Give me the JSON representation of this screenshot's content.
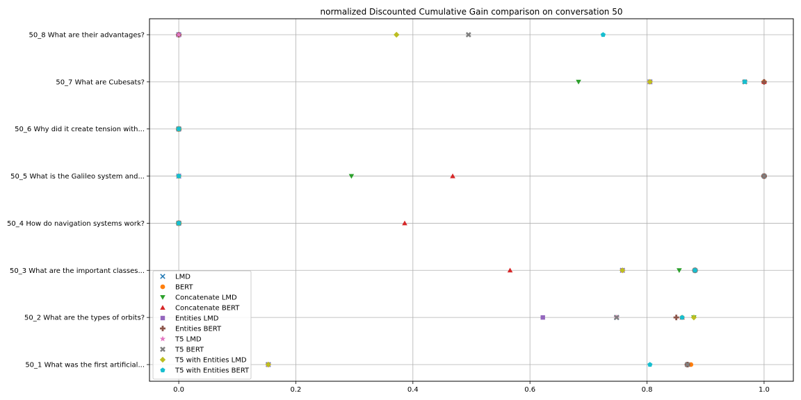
{
  "chart_data": {
    "type": "scatter",
    "title": "normalized Discounted Cumulative Gain comparison on conversation 50",
    "xlabel": "",
    "ylabel": "",
    "xlim": [
      -0.05,
      1.05
    ],
    "xticks": [
      0.0,
      0.2,
      0.4,
      0.6,
      0.8,
      1.0
    ],
    "xtick_labels": [
      "0.0",
      "0.2",
      "0.4",
      "0.6",
      "0.8",
      "1.0"
    ],
    "categories": [
      "50_1 What was the first artificial...",
      "50_2 What are the types of orbits?",
      "50_3 What are the important classes...",
      "50_4 How do navigation systems work?",
      "50_5 What is the Galileo system and...",
      "50_6 Why did it create tension with...",
      "50_7 What are Cubesats?",
      "50_8 What are their advantages?"
    ],
    "grid": true,
    "legend_position": "lower-left",
    "series": [
      {
        "name": "LMD",
        "marker": "x",
        "color": "#1f77b4",
        "values": [
          0.153,
          0.748,
          0.758,
          0.0,
          0.0,
          0.0,
          0.805,
          0.0
        ]
      },
      {
        "name": "BERT",
        "marker": "o",
        "color": "#ff7f0e",
        "values": [
          0.875,
          0.86,
          0.882,
          0.0,
          1.0,
          0.0,
          1.0,
          0.0
        ]
      },
      {
        "name": "Concatenate LMD",
        "marker": "v",
        "color": "#2ca02c",
        "values": [
          0.153,
          0.88,
          0.855,
          0.0,
          0.295,
          0.0,
          0.683,
          0.0
        ]
      },
      {
        "name": "Concatenate BERT",
        "marker": "^",
        "color": "#d62728",
        "values": [
          0.869,
          0.86,
          0.566,
          0.386,
          0.468,
          0.0,
          1.0,
          0.0
        ]
      },
      {
        "name": "Entities LMD",
        "marker": "s",
        "color": "#9467bd",
        "values": [
          0.153,
          0.622,
          0.758,
          0.0,
          0.0,
          0.0,
          0.805,
          0.0
        ]
      },
      {
        "name": "Entities BERT",
        "marker": "P",
        "color": "#8c564b",
        "values": [
          0.869,
          0.85,
          0.882,
          0.0,
          1.0,
          0.0,
          1.0,
          0.0
        ]
      },
      {
        "name": "T5 LMD",
        "marker": "*",
        "color": "#e377c2",
        "values": [
          0.153,
          0.748,
          0.758,
          0.0,
          0.0,
          0.0,
          0.805,
          0.0
        ]
      },
      {
        "name": "T5 BERT",
        "marker": "X",
        "color": "#7f7f7f",
        "values": [
          0.869,
          0.748,
          0.882,
          0.0,
          1.0,
          0.0,
          0.967,
          0.495
        ]
      },
      {
        "name": "T5 with Entities LMD",
        "marker": "D",
        "color": "#bcbd22",
        "values": [
          0.153,
          0.88,
          0.758,
          0.0,
          0.0,
          0.0,
          0.805,
          0.372
        ]
      },
      {
        "name": "T5 with Entities BERT",
        "marker": "p",
        "color": "#17becf",
        "values": [
          0.805,
          0.86,
          0.882,
          0.0,
          0.0,
          0.0,
          0.967,
          0.725
        ]
      }
    ]
  }
}
